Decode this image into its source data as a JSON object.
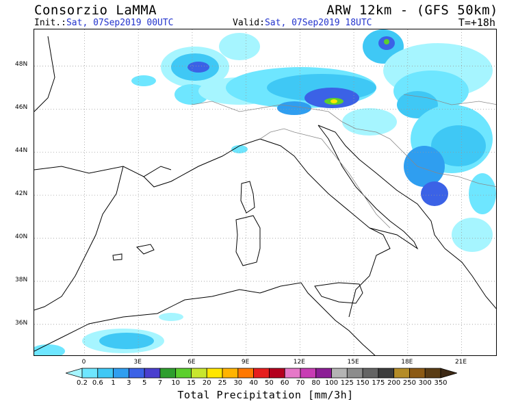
{
  "header": {
    "title_left": "Consorzio LaMMA",
    "title_right": "ARW 12km - (GFS 50km)",
    "init_label": "Init.:",
    "init_value": "Sat, 07Sep2019 00UTC",
    "valid_label": "Valid:",
    "valid_value": "Sat, 07Sep2019 18UTC",
    "time_step": "T=+18h"
  },
  "map": {
    "lat_labels": [
      "48N",
      "46N",
      "44N",
      "42N",
      "40N",
      "38N",
      "36N"
    ],
    "lon_labels": [
      "0",
      "3E",
      "6E",
      "9E",
      "12E",
      "15E",
      "18E",
      "21E"
    ],
    "lat_values": [
      48,
      46,
      44,
      42,
      40,
      38,
      36
    ],
    "lon_values": [
      0,
      3,
      6,
      9,
      12,
      15,
      18,
      21
    ],
    "lat_range": [
      34.5,
      49.7
    ],
    "lon_range": [
      -2.8,
      23.0
    ],
    "grid": true
  },
  "legend": {
    "title": "Total Precipitation [mm/3h]",
    "thresholds": [
      "0.2",
      "0.6",
      "1",
      "3",
      "5",
      "7",
      "10",
      "15",
      "20",
      "25",
      "30",
      "40",
      "50",
      "60",
      "70",
      "80",
      "100",
      "125",
      "150",
      "175",
      "200",
      "250",
      "300",
      "350"
    ],
    "colors": [
      "#a6f5ff",
      "#6ee6ff",
      "#3fc8f5",
      "#2f9ef0",
      "#3b62e6",
      "#4a3fcf",
      "#2e9e2e",
      "#5ccf2e",
      "#c8e62e",
      "#ffe600",
      "#ffb400",
      "#ff7800",
      "#e61e1e",
      "#b4001e",
      "#e678c8",
      "#c83cb4",
      "#8c1e96",
      "#b4b4b4",
      "#8c8c8c",
      "#646464",
      "#3c3c3c",
      "#b48c28",
      "#8c5a14",
      "#5a3c14",
      "#3c2814"
    ]
  }
}
